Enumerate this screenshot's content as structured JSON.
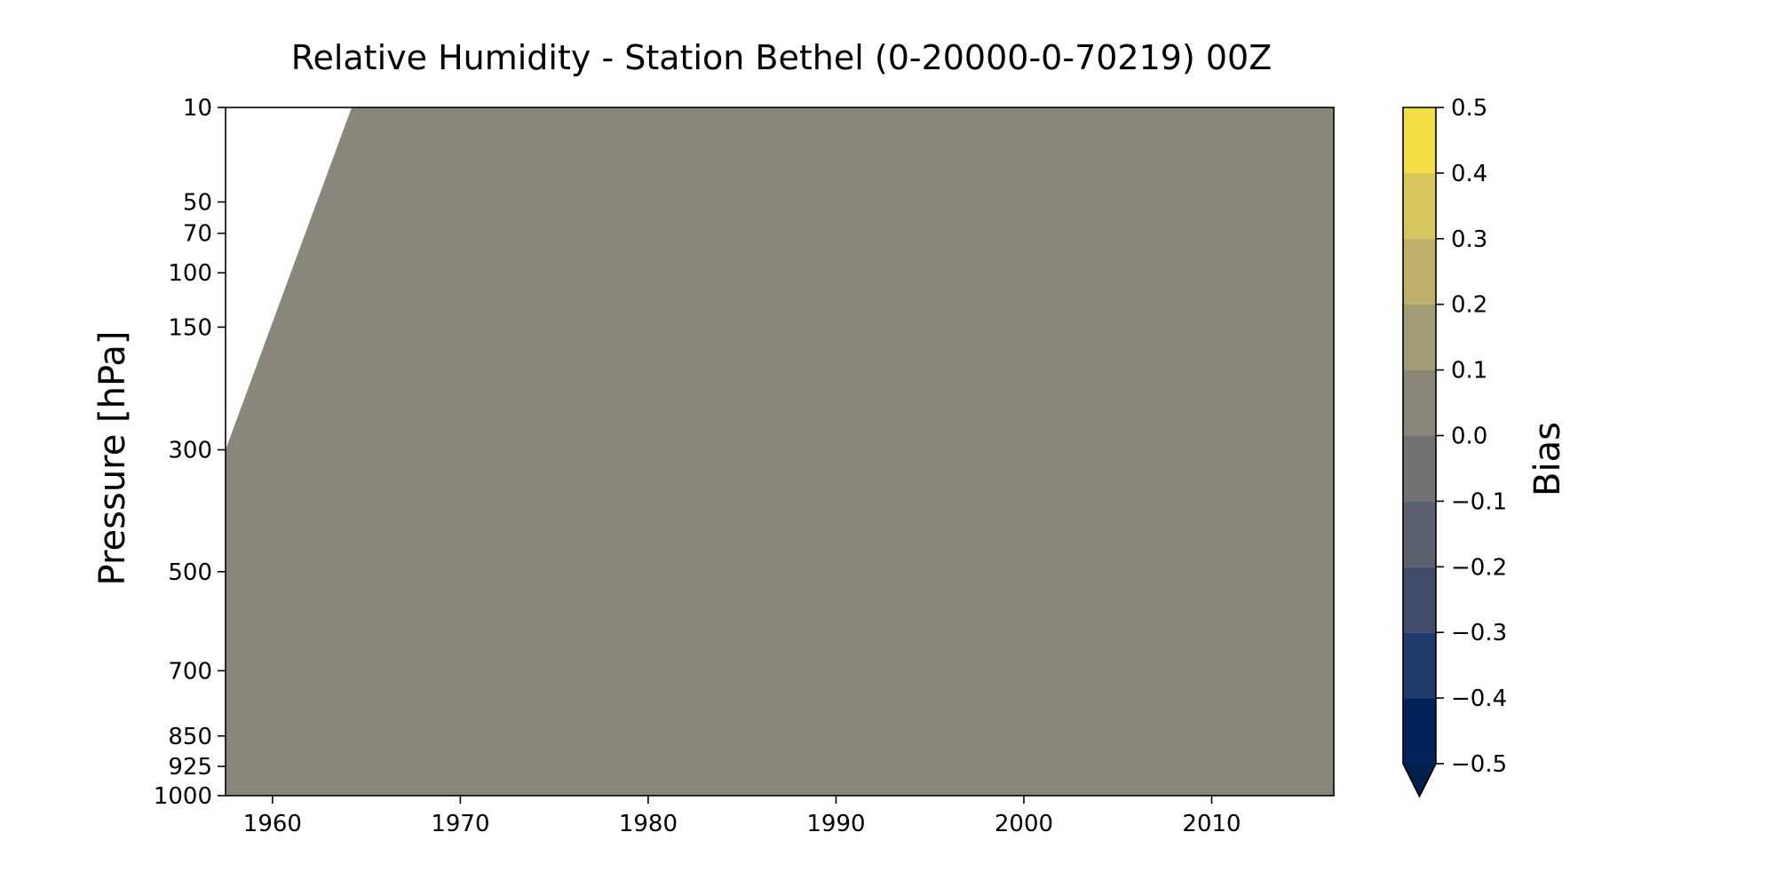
{
  "chart_data": {
    "type": "heatmap",
    "title": "Relative Humidity - Station Bethel (0-20000-0-70219) 00Z",
    "xlabel": "",
    "ylabel": "Pressure [hPa]",
    "xlim": [
      1957.5,
      2016.5
    ],
    "ylim": [
      1000,
      10
    ],
    "y_scale": "pressure-log",
    "x_ticks": [
      1960,
      1970,
      1980,
      1990,
      2000,
      2010
    ],
    "x_tick_labels": [
      "1960",
      "1970",
      "1980",
      "1990",
      "2000",
      "2010"
    ],
    "y_ticks": [
      10,
      50,
      70,
      100,
      150,
      300,
      500,
      700,
      850,
      925,
      1000
    ],
    "y_tick_labels": [
      "10",
      "50",
      "70",
      "100",
      "150",
      "300",
      "500",
      "700",
      "850",
      "925",
      "1000"
    ],
    "field_value_range": [
      0.0,
      0.1
    ],
    "field_color": "#8a8679",
    "data_boundary": [
      {
        "year": 1957.5,
        "pressure": 300
      },
      {
        "year": 1964.2,
        "pressure": 10.2
      },
      {
        "year": 1965.0,
        "pressure": 10
      }
    ],
    "colorbar": {
      "label": "Bias",
      "min": -0.5,
      "max": 0.5,
      "extend": "min",
      "ticks": [
        -0.5,
        -0.4,
        -0.3,
        -0.2,
        -0.1,
        0.0,
        0.1,
        0.2,
        0.3,
        0.4,
        0.5
      ],
      "tick_labels": [
        "−0.5",
        "−0.4",
        "−0.3",
        "−0.2",
        "−0.1",
        "0.0",
        "0.1",
        "0.2",
        "0.3",
        "0.4",
        "0.5"
      ],
      "colors": [
        "#00235a",
        "#213a6d",
        "#414d6b",
        "#5b606f",
        "#737373",
        "#8a8679",
        "#a29c75",
        "#bcb06c",
        "#d6c65d",
        "#f2dd45"
      ],
      "extend_color": "#00204c"
    }
  }
}
